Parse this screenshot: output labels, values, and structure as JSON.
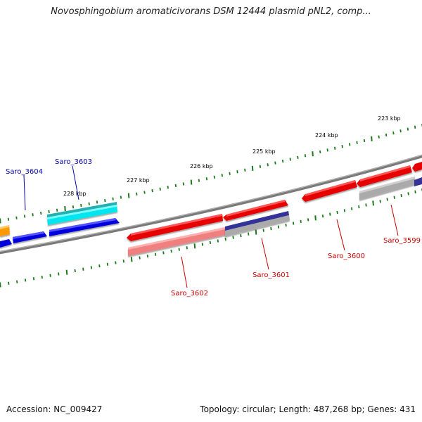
{
  "title": "Novosphingobium aromaticivorans DSM 12444 plasmid pNL2, comp...",
  "accession": "Accession: NC_009427",
  "footer_info": "Topology: circular; Length: 487,268 bp; Genes: 431",
  "colors": {
    "backbone": "#7a7a7a",
    "tick": "#1a7a1a",
    "forward_gene_label": "#0000aa",
    "reverse_gene_label": "#cc0000",
    "red": "#e60000",
    "light_red": "#f08080",
    "blue": "#0000dd",
    "cyan": "#00e5ee",
    "orange": "#ff9900",
    "gray": "#aaaaaa",
    "navy": "#333399"
  },
  "kbp_labels": [
    "223 kbp",
    "224 kbp",
    "225 kbp",
    "226 kbp",
    "227 kbp",
    "228 kbp"
  ],
  "gene_labels": [
    {
      "text": "Saro_3603",
      "strand": "forward"
    },
    {
      "text": "Saro_3604",
      "strand": "forward"
    },
    {
      "text": "Saro_3602",
      "strand": "reverse"
    },
    {
      "text": "Saro_3601",
      "strand": "reverse"
    },
    {
      "text": "Saro_3600",
      "strand": "reverse"
    },
    {
      "text": "Saro_3599",
      "strand": "reverse"
    }
  ]
}
